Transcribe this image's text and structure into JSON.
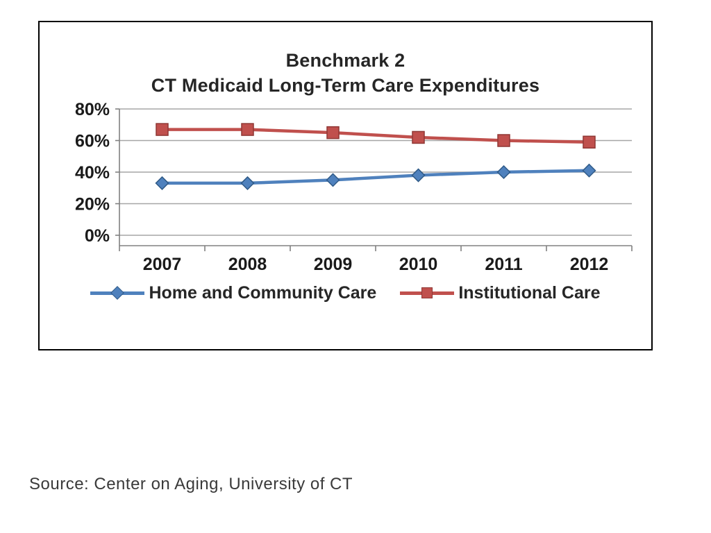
{
  "chart_data": {
    "type": "line",
    "title": "Benchmark 2 - CT Medicaid Long-Term Care Expenditures",
    "title_lines": [
      "Benchmark 2",
      "CT Medicaid Long-Term Care Expenditures"
    ],
    "categories": [
      "2007",
      "2008",
      "2009",
      "2010",
      "2011",
      "2012"
    ],
    "series": [
      {
        "name": "Home and Community Care",
        "values": [
          33,
          33,
          35,
          38,
          40,
          41
        ],
        "color": "#4F81BD",
        "edge": "#2f5a87",
        "marker": "diamond"
      },
      {
        "name": "Institutional Care",
        "values": [
          67,
          67,
          65,
          62,
          60,
          59
        ],
        "color": "#C0504D",
        "edge": "#8f3734",
        "marker": "square"
      }
    ],
    "xlabel": "",
    "ylabel": "",
    "ylim": [
      0,
      80
    ],
    "yticks": [
      0,
      20,
      40,
      60,
      80
    ],
    "ytick_format": "percent",
    "grid": true,
    "legend_position": "bottom"
  },
  "colors": {
    "grid": "#a6a6a6",
    "axis": "#808080",
    "text": "#262626"
  },
  "footer": {
    "source": "Source: Center on Aging, University of CT"
  }
}
